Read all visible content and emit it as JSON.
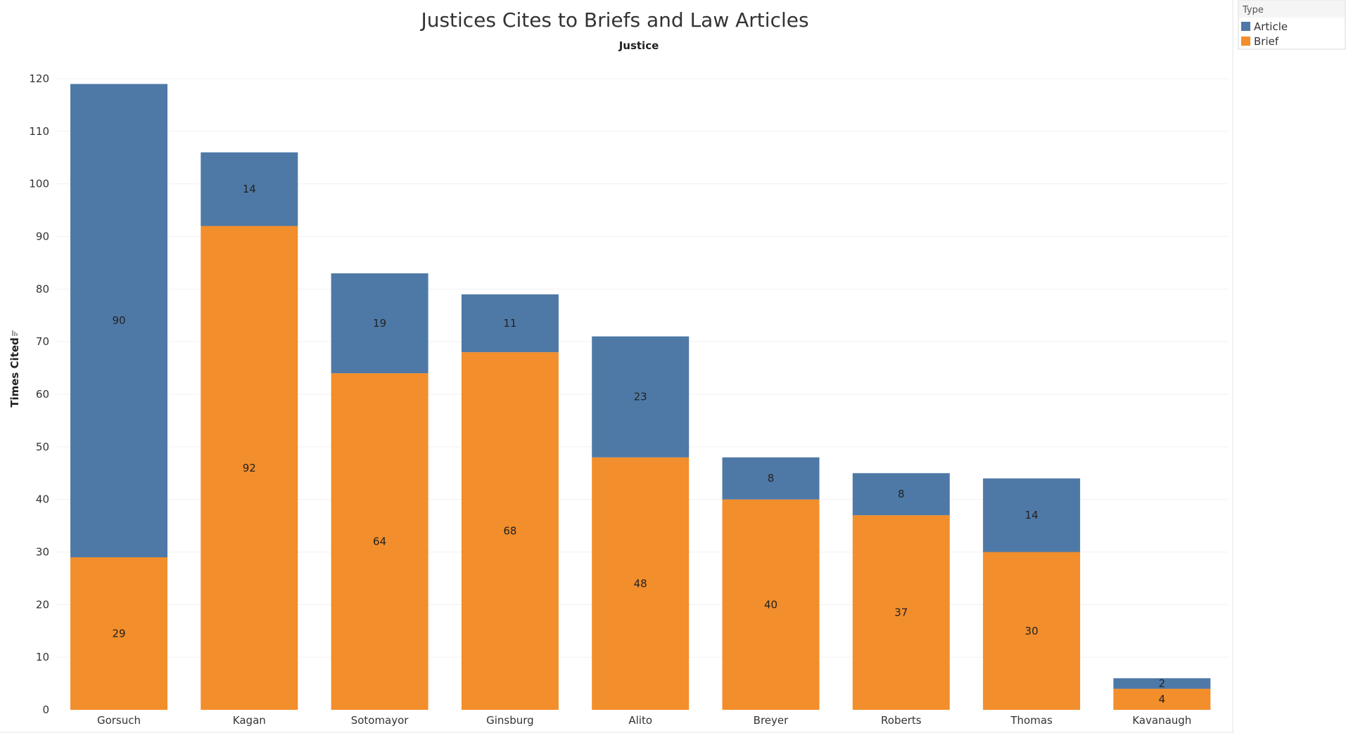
{
  "chart_data": {
    "type": "bar",
    "stacked": true,
    "title": "Justices Cites to Briefs and Law Articles",
    "column_header": "Justice",
    "ylabel": "Times Cited",
    "ylim": [
      0,
      120
    ],
    "y_ticks": [
      0,
      10,
      20,
      30,
      40,
      50,
      60,
      70,
      80,
      90,
      100,
      110,
      120
    ],
    "categories": [
      "Gorsuch",
      "Kagan",
      "Sotomayor",
      "Ginsburg",
      "Alito",
      "Breyer",
      "Roberts",
      "Thomas",
      "Kavanaugh"
    ],
    "series": [
      {
        "name": "Brief",
        "color": "#f28e2b",
        "values": [
          29,
          92,
          64,
          68,
          48,
          40,
          37,
          30,
          4
        ]
      },
      {
        "name": "Article",
        "color": "#4e79a7",
        "values": [
          90,
          14,
          19,
          11,
          23,
          8,
          8,
          14,
          2
        ]
      }
    ],
    "legend": {
      "title": "Type",
      "entries": [
        {
          "label": "Article",
          "color": "#4e79a7"
        },
        {
          "label": "Brief",
          "color": "#f28e2b"
        }
      ]
    }
  }
}
